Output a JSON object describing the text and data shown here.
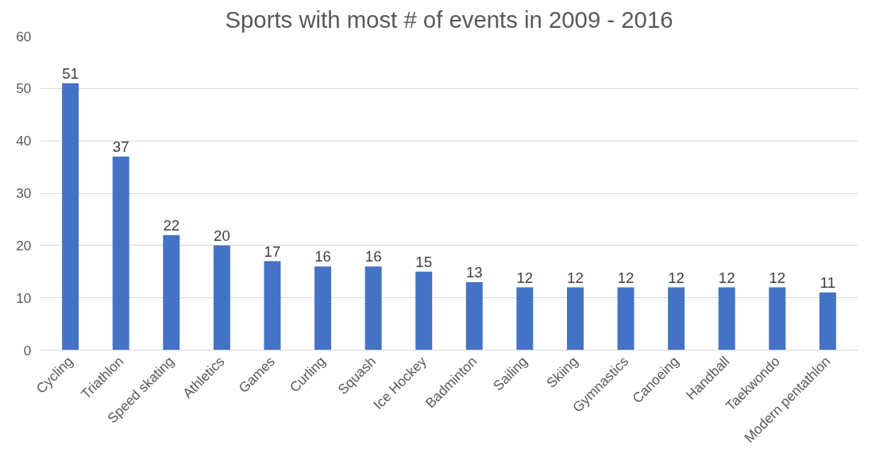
{
  "chart_data": {
    "type": "bar",
    "title": "Sports with most # of events in 2009 - 2016",
    "categories": [
      "Cycling",
      "Triathlon",
      "Speed skating",
      "Athletics",
      "Games",
      "Curling",
      "Squash",
      "Ice Hockey",
      "Badminton",
      "Sailing",
      "Skiing",
      "Gymnastics",
      "Canoeing",
      "Handball",
      "Taekwondo",
      "Modern pentathlon"
    ],
    "values": [
      51,
      37,
      22,
      20,
      17,
      16,
      16,
      15,
      13,
      12,
      12,
      12,
      12,
      12,
      12,
      11
    ],
    "color": "#4472c4",
    "ylim": [
      0,
      60
    ],
    "yticks": [
      0,
      10,
      20,
      30,
      40,
      50,
      60
    ],
    "grid": "y",
    "data_labels": true
  }
}
